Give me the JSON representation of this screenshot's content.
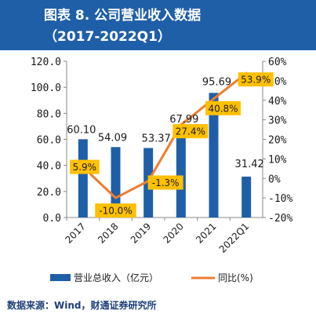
{
  "title": {
    "line1": "图表 8.  公司营业收入数据",
    "line2": "（2017-2022Q1）"
  },
  "source": "数据来源：Wind，财通证券研究所",
  "colors": {
    "header_bg": "#1f5fa8",
    "bar": "#1f5fa8",
    "line": "#ed7d31",
    "label_box": "#ffc000"
  },
  "chart_data": {
    "type": "bar",
    "categories": [
      "2017",
      "2018",
      "2019",
      "2020",
      "2021",
      "2022Q1"
    ],
    "series": [
      {
        "name": "营业总收入（亿元）",
        "type": "bar",
        "axis": "left",
        "values": [
          60.1,
          54.09,
          53.37,
          67.99,
          95.69,
          31.42
        ],
        "labels": [
          "60.10",
          "54.09",
          "53.37",
          "67.99",
          "95.69",
          "31.42"
        ]
      },
      {
        "name": "同比(%)",
        "type": "line",
        "axis": "right",
        "values": [
          5.9,
          -10.0,
          -1.3,
          27.4,
          40.8,
          53.9
        ],
        "labels": [
          "5.9%",
          "-10.0%",
          "-1.3%",
          "27.4%",
          "40.8%",
          "53.9%"
        ]
      }
    ],
    "left_axis": {
      "ylim": [
        0,
        120
      ],
      "ticks": [
        0,
        20,
        40,
        60,
        80,
        100,
        120
      ],
      "tick_labels": [
        "0.0",
        "20.0",
        "40.0",
        "60.0",
        "80.0",
        "100.0",
        "120.0"
      ]
    },
    "right_axis": {
      "ylim": [
        -20,
        60
      ],
      "ticks": [
        -20,
        -10,
        0,
        10,
        20,
        30,
        40,
        50,
        60
      ],
      "tick_labels": [
        "-20%",
        "-10%",
        "0%",
        "10%",
        "20%",
        "30%",
        "40%",
        "50%",
        "60%"
      ]
    },
    "grid": false,
    "legend_position": "bottom"
  }
}
